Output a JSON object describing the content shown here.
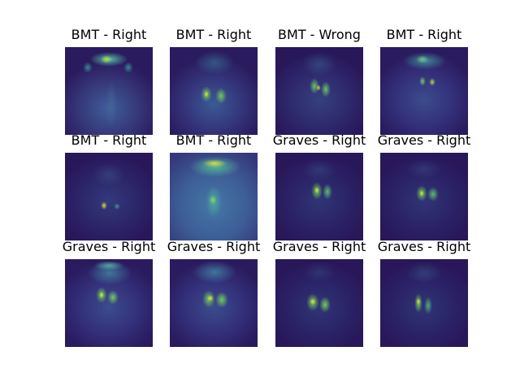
{
  "figure": {
    "colormap": "viridis",
    "panels": [
      {
        "title": "BMT - Right",
        "variant": "head_bright"
      },
      {
        "title": "BMT - Right",
        "variant": "thyroid_mid"
      },
      {
        "title": "BMT - Wrong",
        "variant": "thyroid_dark"
      },
      {
        "title": "BMT - Right",
        "variant": "small_dots_head"
      },
      {
        "title": "BMT - Right",
        "variant": "dark_small_dots"
      },
      {
        "title": "BMT - Right",
        "variant": "bright_head_neck"
      },
      {
        "title": "Graves - Right",
        "variant": "thyroid_dark2"
      },
      {
        "title": "Graves - Right",
        "variant": "thyroid_dark3"
      },
      {
        "title": "Graves - Right",
        "variant": "thyroid_head"
      },
      {
        "title": "Graves - Right",
        "variant": "thyroid_head2"
      },
      {
        "title": "Graves - Right",
        "variant": "thyroid_low"
      },
      {
        "title": "Graves - Right",
        "variant": "thyroid_low2"
      }
    ]
  }
}
